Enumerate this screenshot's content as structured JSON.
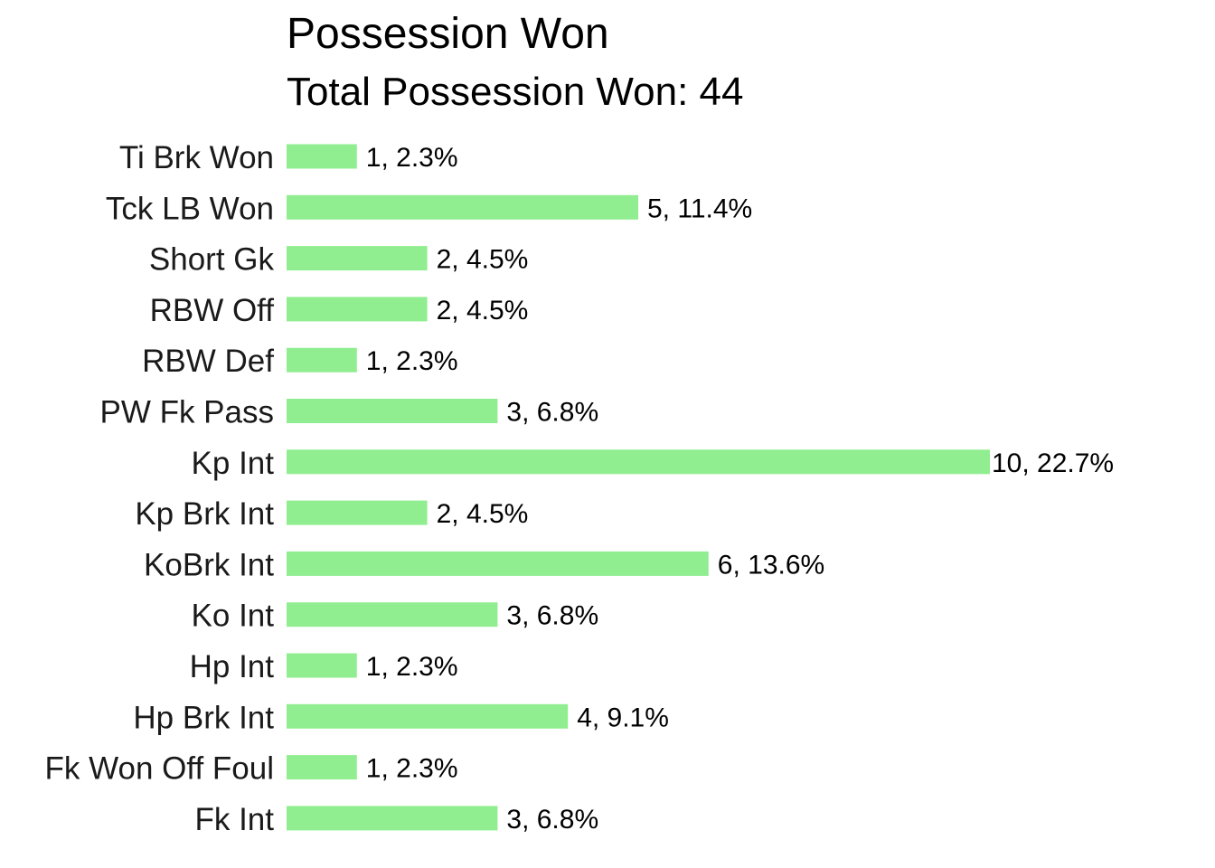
{
  "chart_data": {
    "type": "bar",
    "orientation": "horizontal",
    "title": "Possession Won",
    "subtitle": "Total Possession Won: 44",
    "xlabel": "",
    "ylabel": "",
    "grid": false,
    "legend": "none",
    "bar_color": "#90EE90",
    "xlim": [
      0,
      10
    ],
    "categories": [
      "Ti Brk Won",
      "Tck LB Won",
      "Short Gk",
      "RBW Off",
      "RBW Def",
      "PW Fk Pass",
      "Kp Int",
      "Kp Brk Int",
      "KoBrk Int",
      "Ko Int",
      "Hp Int",
      "Hp Brk Int",
      "Fk Won Off Foul",
      "Fk Int"
    ],
    "values": [
      1,
      5,
      2,
      2,
      1,
      3,
      10,
      2,
      6,
      3,
      1,
      4,
      1,
      3
    ],
    "data_labels": [
      "1, 2.3%",
      "5, 11.4%",
      "2, 4.5%",
      "2, 4.5%",
      "1, 2.3%",
      "3, 6.8%",
      "10, 22.7%",
      "2, 4.5%",
      "6, 13.6%",
      "3, 6.8%",
      "1, 2.3%",
      "4, 9.1%",
      "1, 2.3%",
      "3, 6.8%"
    ]
  }
}
